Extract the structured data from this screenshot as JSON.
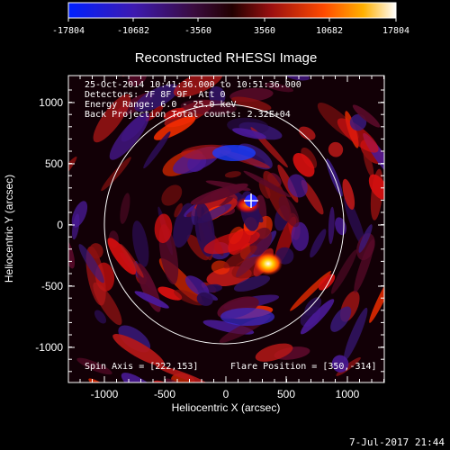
{
  "colorbar": {
    "tick_labels": [
      "-17804",
      "-10682",
      "-3560",
      "3560",
      "10682",
      "17804"
    ]
  },
  "plot": {
    "title": "Reconstructed RHESSI Image",
    "xlabel": "Heliocentric X (arcsec)",
    "ylabel": "Heliocentric Y (arcsec)",
    "x_ticks": [
      "-1000",
      "-500",
      "0",
      "500",
      "1000"
    ],
    "y_ticks": [
      "1000",
      "500",
      "0",
      "-500",
      "-1000"
    ]
  },
  "info": {
    "time_range": "25-Oct-2014 10:41:36.000 to 10:51:36.000",
    "detectors": "Detectors: 7F 8F 9F, Att 0",
    "energy": "Energy Range: 6.0 - 25.0 keV",
    "method": "Back Projection    Total counts: 2.32E+04",
    "spin_axis": "Spin Axis = [222,153]",
    "flare_position": "Flare Position = [350,-314]"
  },
  "footer": {
    "date": "7-Jul-2017 21:44"
  },
  "colors": {
    "background": "#000000",
    "foreground": "#ffffff",
    "colormap": [
      "#0020ff",
      "#3b1a9e",
      "#2a0a33",
      "#000000",
      "#5a0a10",
      "#d81010",
      "#ff6a00",
      "#ffb000",
      "#ffffff"
    ]
  },
  "icons": {
    "spin_axis_marker": "crosshair-icon"
  }
}
